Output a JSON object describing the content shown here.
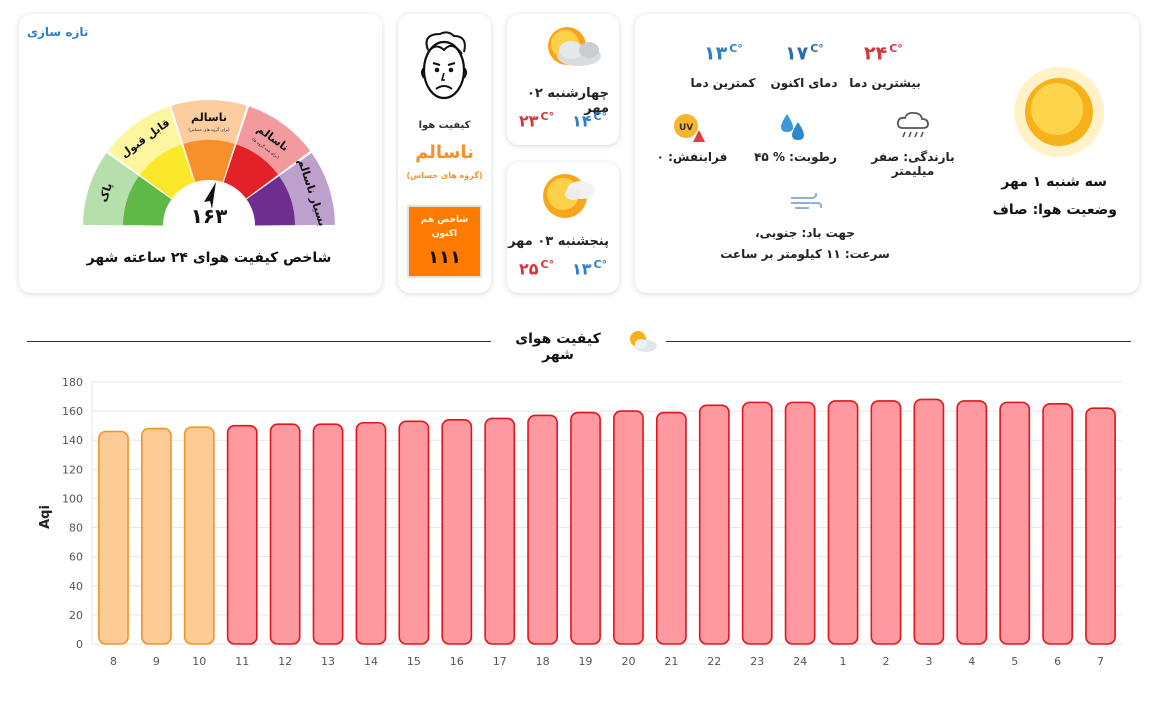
{
  "aqi_card": {
    "refresh_label": "تازه سازی",
    "gauge_value": "۱۶۳",
    "title": "شاخص کیفیت هوای ۲۴ ساعته شهر",
    "segments": [
      {
        "label": "پاک",
        "sub": "",
        "color": "#5fb946"
      },
      {
        "label": "قابل قبول",
        "sub": "",
        "color": "#fce82a"
      },
      {
        "label": "ناسالم",
        "sub": "(برای گروه های حساس)",
        "color": "#f7902a"
      },
      {
        "label": "ناسالم",
        "sub": "(برای همه گروه ها)",
        "color": "#e42129"
      },
      {
        "label": "بسیار ناسالم",
        "sub": "",
        "color": "#6e2e8f"
      }
    ]
  },
  "status_card": {
    "label": "کیفیت هوا",
    "status": "ناسالم",
    "status_sub": "(گروه های حساس)",
    "now_box_label": "شاخص هم اکنون",
    "now_box_value": "۱۱۱"
  },
  "forecast": [
    {
      "day": "چهارشنبه ۰۲ مهر",
      "low": "۱۴",
      "high": "۲۳",
      "unit": "C°",
      "icon": "partly-cloudy-icon"
    },
    {
      "day": "پنجشنبه ۰۳ مهر",
      "low": "۱۳",
      "high": "۲۵",
      "unit": "C°",
      "icon": "partly-cloudy-icon"
    }
  ],
  "weather": {
    "unit": "C°",
    "max_temp": "۲۴",
    "max_label": "بیشترین دما",
    "now_temp": "۱۷",
    "now_label": "دمای اکنون",
    "min_temp": "۱۳",
    "min_label": "کمترین دما",
    "rain": "بارندگی: صفر میلیمتر",
    "humidity": "رطوبت: % ۴۵",
    "uv": "فرابنفش: ۰",
    "uv_badge": "UV",
    "wind_dir": "جهت باد: جنوبی،",
    "wind_speed": "سرعت: ۱۱ کیلومتر بر ساعت",
    "date": "سه شنبه ۱ مهر",
    "condition": "وضعیت هوا: صاف"
  },
  "section_title": "کیفیت هوای شهر",
  "chart_data": {
    "type": "bar",
    "title": "",
    "xlabel": "",
    "ylabel": "Aqi",
    "ylim": [
      0,
      180
    ],
    "yticks": [
      0,
      20,
      40,
      60,
      80,
      100,
      120,
      140,
      160,
      180
    ],
    "grid": true,
    "categories": [
      "8",
      "9",
      "10",
      "11",
      "12",
      "13",
      "14",
      "15",
      "16",
      "17",
      "18",
      "19",
      "20",
      "21",
      "22",
      "23",
      "24",
      "1",
      "2",
      "3",
      "4",
      "5",
      "6",
      "7"
    ],
    "values": [
      146,
      148,
      149,
      150,
      151,
      151,
      152,
      153,
      154,
      155,
      157,
      159,
      160,
      159,
      164,
      166,
      166,
      167,
      167,
      168,
      167,
      166,
      165,
      162
    ],
    "colors": {
      "orange_fill": "#fdcb96",
      "orange_stroke": "#f39422",
      "red_fill": "#fe9a9f",
      "red_stroke": "#e1151d"
    }
  }
}
